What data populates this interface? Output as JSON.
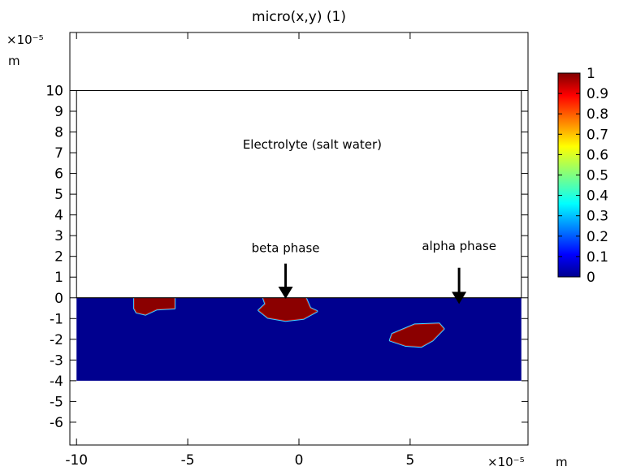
{
  "chart_data": {
    "type": "heatmap",
    "title": "micro(x,y) (1)",
    "x_scale_label": "×10⁻⁵",
    "x_unit": "m",
    "y_scale_label": "×10⁻⁵",
    "y_unit": "m",
    "xlim": [
      -10.3,
      10.3
    ],
    "ylim": [
      -7.1,
      12.8
    ],
    "x_ticks": [
      -10,
      -5,
      0,
      5
    ],
    "x_tick_labels": [
      "-10",
      "-5",
      "0",
      "5"
    ],
    "y_ticks": [
      10,
      9,
      8,
      7,
      6,
      5,
      4,
      3,
      2,
      1,
      0,
      -1,
      -2,
      -3,
      -4,
      -5,
      -6
    ],
    "y_tick_labels": [
      "10",
      "9",
      "8",
      "7",
      "6",
      "5",
      "4",
      "3",
      "2",
      "1",
      "0",
      "-1",
      "-2",
      "-3",
      "-4",
      "-5",
      "-6"
    ],
    "electrolyte_region": {
      "x": [
        -10,
        10
      ],
      "y": [
        0,
        10
      ],
      "label": "Electrolyte (salt water)"
    },
    "metal_region": {
      "x": [
        -10,
        10
      ],
      "y": [
        -4,
        0
      ],
      "value": 0
    },
    "beta_phase_inclusions": [
      {
        "value": 1,
        "points": [
          [
            -7.4,
            0
          ],
          [
            -5.6,
            0
          ],
          [
            -5.6,
            -0.5
          ],
          [
            -6.4,
            -0.55
          ],
          [
            -6.9,
            -0.8
          ],
          [
            -7.3,
            -0.7
          ],
          [
            -7.4,
            -0.5
          ]
        ]
      },
      {
        "value": 1,
        "points": [
          [
            -1.6,
            0
          ],
          [
            0.3,
            0
          ],
          [
            0.5,
            -0.5
          ],
          [
            0.8,
            -0.65
          ],
          [
            0.2,
            -1.0
          ],
          [
            -0.6,
            -1.1
          ],
          [
            -1.4,
            -0.95
          ],
          [
            -1.8,
            -0.6
          ],
          [
            -1.5,
            -0.3
          ]
        ]
      },
      {
        "value": 1,
        "points": [
          [
            4.2,
            -1.75
          ],
          [
            5.2,
            -1.3
          ],
          [
            6.3,
            -1.25
          ],
          [
            6.5,
            -1.5
          ],
          [
            6.0,
            -2.05
          ],
          [
            5.5,
            -2.35
          ],
          [
            4.8,
            -2.3
          ],
          [
            4.1,
            -2.05
          ]
        ]
      }
    ],
    "colorbar": {
      "min": 0,
      "max": 1,
      "ticks": [
        1,
        0.9,
        0.8,
        0.7,
        0.6,
        0.5,
        0.4,
        0.3,
        0.2,
        0.1,
        0
      ],
      "tick_labels": [
        "1",
        "0.9",
        "0.8",
        "0.7",
        "0.6",
        "0.5",
        "0.4",
        "0.3",
        "0.2",
        "0.1",
        "0"
      ],
      "colormap": "rainbow"
    },
    "annotations": [
      {
        "text": "beta phase",
        "x": -0.6,
        "y": 2.2,
        "arrow_from": [
          -0.6,
          1.65
        ],
        "arrow_to": [
          -0.6,
          -0.05
        ]
      },
      {
        "text": "alpha phase",
        "x": 7.2,
        "y": 2.3,
        "arrow_from": [
          7.2,
          1.45
        ],
        "arrow_to": [
          7.2,
          -0.3
        ]
      }
    ],
    "colors": {
      "low": "#00008f",
      "high": "#8b0000",
      "frame": "#000000",
      "background": "#ffffff"
    }
  }
}
